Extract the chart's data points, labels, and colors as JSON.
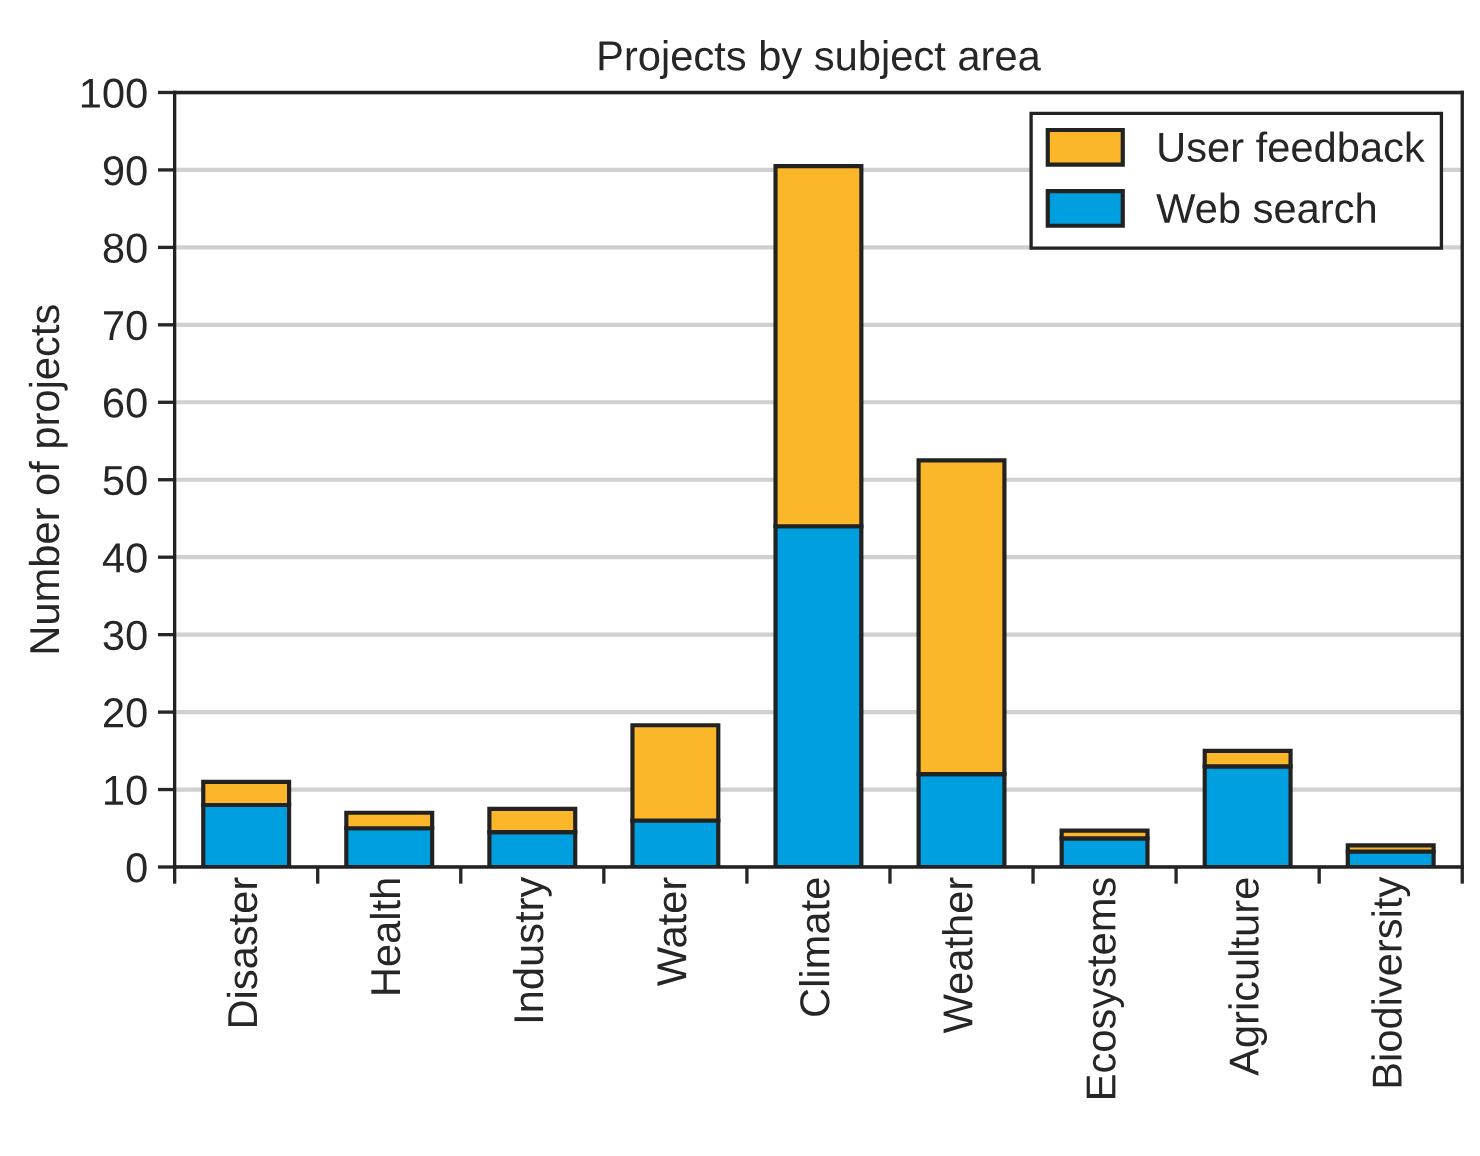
{
  "chart_data": {
    "type": "bar",
    "title": "Projects by subject area",
    "ylabel": "Number of projects",
    "categories": [
      "Disaster",
      "Health",
      "Industry",
      "Water",
      "Climate",
      "Weather",
      "Ecosystems",
      "Agriculture",
      "Biodiversity"
    ],
    "stacked": true,
    "series": [
      {
        "name": "Web search",
        "color": "#009fe0",
        "values": [
          8,
          5,
          4.5,
          6,
          44,
          12,
          3.7,
          13,
          2
        ]
      },
      {
        "name": "User feedback",
        "color": "#fbb629",
        "values": [
          3,
          2,
          3,
          12.3,
          46.5,
          40.5,
          1,
          2,
          0.8
        ]
      }
    ],
    "ylim": [
      0,
      100
    ],
    "yticks": [
      0,
      10,
      20,
      30,
      40,
      50,
      60,
      70,
      80,
      90,
      100
    ],
    "grid": "y",
    "legend": "top right"
  }
}
